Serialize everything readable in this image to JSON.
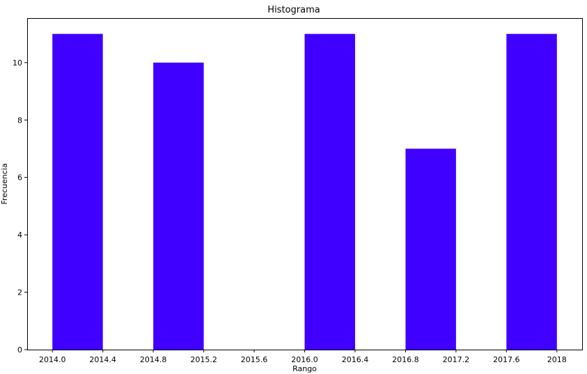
{
  "chart_data": {
    "type": "bar",
    "title": "Histograma",
    "xlabel": "Rango",
    "ylabel": "Frecuencia",
    "xlim": [
      2013.8,
      2018.2
    ],
    "ylim": [
      0,
      11.55
    ],
    "xticks": [
      2014.0,
      2014.4,
      2014.8,
      2015.2,
      2015.6,
      2016.0,
      2016.4,
      2016.8,
      2017.2,
      2017.6,
      2018.0
    ],
    "xtick_labels": [
      "2014.0",
      "2014.4",
      "2014.8",
      "2015.2",
      "2015.6",
      "2016.0",
      "2016.4",
      "2016.8",
      "2017.2",
      "2017.6",
      "2018"
    ],
    "yticks": [
      0,
      2,
      4,
      6,
      8,
      10
    ],
    "ytick_labels": [
      "0",
      "2",
      "4",
      "6",
      "8",
      "10"
    ],
    "bins": [
      {
        "start": 2014.0,
        "end": 2014.4,
        "value": 11
      },
      {
        "start": 2014.4,
        "end": 2014.8,
        "value": 0
      },
      {
        "start": 2014.8,
        "end": 2015.2,
        "value": 10
      },
      {
        "start": 2015.2,
        "end": 2015.6,
        "value": 0
      },
      {
        "start": 2015.6,
        "end": 2016.0,
        "value": 0
      },
      {
        "start": 2016.0,
        "end": 2016.4,
        "value": 11
      },
      {
        "start": 2016.4,
        "end": 2016.8,
        "value": 0
      },
      {
        "start": 2016.8,
        "end": 2017.2,
        "value": 7
      },
      {
        "start": 2017.2,
        "end": 2017.6,
        "value": 0
      },
      {
        "start": 2017.6,
        "end": 2018.0,
        "value": 11
      }
    ],
    "bar_color": "#3f00ff",
    "grid": false,
    "legend": false
  }
}
